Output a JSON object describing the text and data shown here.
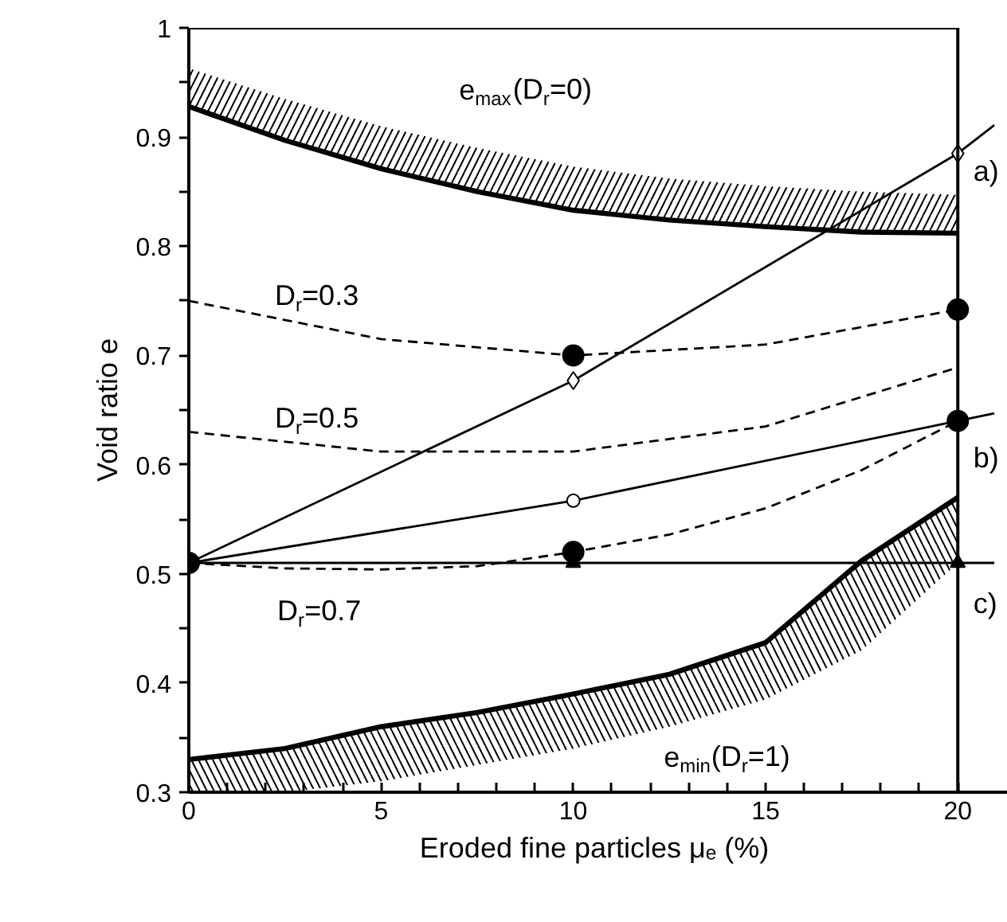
{
  "chart_data": {
    "type": "line",
    "xlabel": "Eroded fine particles μₑ  (%)",
    "ylabel": "Void ratio e",
    "xlim": [
      0,
      21.3
    ],
    "ylim": [
      0.3,
      1
    ],
    "xticks": [
      0,
      {
        "value": 1,
        "label": null
      },
      {
        "value": 2,
        "label": null
      },
      {
        "value": 3,
        "label": null
      },
      {
        "value": 4,
        "label": null
      },
      5,
      {
        "value": 6,
        "label": null
      },
      {
        "value": 7,
        "label": null
      },
      {
        "value": 8,
        "label": null
      },
      {
        "value": 9,
        "label": null
      },
      10,
      {
        "value": 11,
        "label": null
      },
      {
        "value": 12,
        "label": null
      },
      {
        "value": 13,
        "label": null
      },
      {
        "value": 14,
        "label": null
      },
      15,
      {
        "value": 16,
        "label": null
      },
      {
        "value": 17,
        "label": null
      },
      {
        "value": 18,
        "label": null
      },
      {
        "value": 19,
        "label": null
      },
      20
    ],
    "yticks": [
      0.3,
      {
        "value": 0.35,
        "label": null
      },
      0.4,
      {
        "value": 0.45,
        "label": null
      },
      0.5,
      {
        "value": 0.55,
        "label": null
      },
      0.6,
      {
        "value": 0.65,
        "label": null
      },
      0.7,
      {
        "value": 0.75,
        "label": null
      },
      0.8,
      {
        "value": 0.85,
        "label": null
      },
      0.9,
      {
        "value": 0.95,
        "label": null
      },
      1
    ],
    "grid": false,
    "series": [
      {
        "color": "#000000",
        "x": [
          0,
          2.5,
          5,
          7.5,
          10,
          12.5,
          15,
          17.5,
          20
        ],
        "values": [
          0.928,
          0.897,
          0.871,
          0.85,
          0.833,
          0.824,
          0.818,
          0.813,
          0.812
        ],
        "lower": [
          0.928,
          0.897,
          0.871,
          0.85,
          0.833,
          0.824,
          0.818,
          0.813,
          0.812
        ],
        "upper": [
          0.963,
          0.935,
          0.91,
          0.89,
          0.873,
          0.862,
          0.855,
          0.85,
          0.847
        ],
        "line_style": "solid"
      },
      {
        "color": "#000000",
        "x": [
          0,
          2.5,
          5,
          7.5,
          10,
          12.5,
          15,
          17.5,
          20
        ],
        "values": [
          0.33,
          0.34,
          0.36,
          0.373,
          0.39,
          0.408,
          0.437,
          0.512,
          0.57
        ],
        "lower": [
          0.3,
          0.3,
          0.31,
          0.325,
          0.34,
          0.36,
          0.385,
          0.43,
          0.51
        ],
        "upper": [
          0.33,
          0.34,
          0.36,
          0.373,
          0.39,
          0.408,
          0.437,
          0.512,
          0.57
        ],
        "line_style": "solid"
      },
      {
        "color": "#000000",
        "x": [
          0,
          5,
          10,
          15,
          20
        ],
        "values": [
          0.75,
          0.715,
          0.7,
          0.71,
          0.742
        ],
        "line_style": "dashed"
      },
      {
        "color": "#000000",
        "x": [
          0,
          5,
          10,
          15,
          20
        ],
        "values": [
          0.63,
          0.612,
          0.612,
          0.635,
          0.689
        ],
        "line_style": "dashed"
      },
      {
        "color": "#000000",
        "x": [
          0,
          2.5,
          5,
          7.5,
          10,
          12.5,
          15,
          17.5,
          20
        ],
        "values": [
          0.51,
          0.505,
          0.504,
          0.507,
          0.52,
          0.536,
          0.56,
          0.595,
          0.64
        ],
        "line_style": "dashed"
      },
      {
        "color": "#000000",
        "x": [
          0,
          10,
          20,
          20.95
        ],
        "values": [
          0.51,
          0.677,
          0.885,
          0.911
        ],
        "line_style": "solid"
      },
      {
        "color": "#000000",
        "x": [
          0,
          10,
          20,
          20.95
        ],
        "values": [
          0.51,
          0.567,
          0.64,
          0.647
        ],
        "line_style": "solid"
      },
      {
        "color": "#000000",
        "x": [
          0,
          20.95
        ],
        "values": [
          0.51,
          0.51
        ],
        "line_style": "solid"
      },
      {
        "type": "scatter",
        "color": "#000000",
        "marker": "circle",
        "x": [
          0,
          10,
          20,
          10,
          20
        ],
        "values": [
          0.51,
          0.7,
          0.742,
          0.52,
          0.64
        ]
      },
      {
        "type": "scatter",
        "color": "#ffffff",
        "marker": "diamond",
        "x": [
          10,
          20
        ],
        "values": [
          0.677,
          0.885
        ]
      },
      {
        "type": "scatter",
        "color": "#ffffff",
        "marker": "circle",
        "x": [
          10
        ],
        "values": [
          0.567
        ]
      },
      {
        "type": "scatter",
        "color": "#000000",
        "marker": "triangle",
        "x": [
          10,
          20
        ],
        "values": [
          0.51,
          0.51
        ]
      }
    ],
    "ref_lines": [
      {
        "axis": "x",
        "value": 20
      },
      {
        "axis": "y",
        "value": 1
      }
    ],
    "annotations": [
      "e$_{max}$(D$_{r}$=0)",
      "D$_{r}$=0.3",
      "D$_{r}$=0.5",
      "D$_{r}$=0.7",
      "e$_{min}$(D$_{r}$=1)",
      "a)",
      "b)",
      "c)"
    ]
  }
}
